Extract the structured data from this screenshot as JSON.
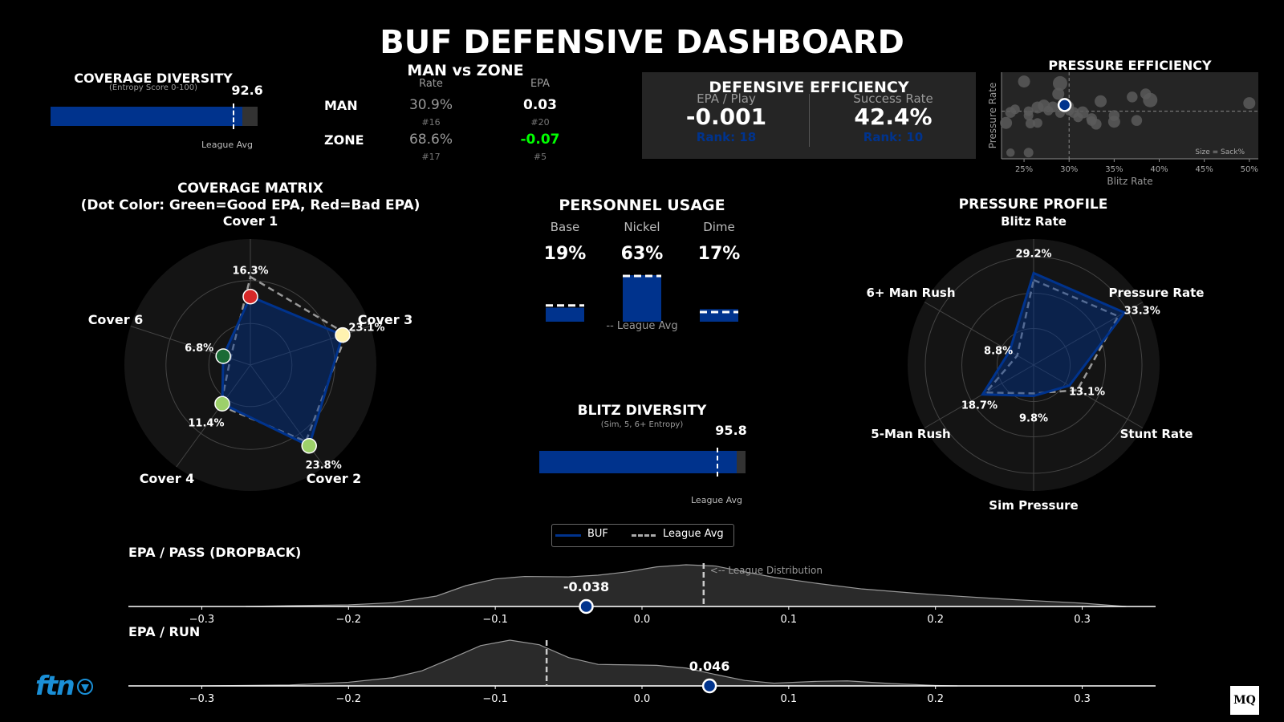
{
  "title": "BUF DEFENSIVE DASHBOARD",
  "coverage_diversity": {
    "title": "COVERAGE DIVERSITY",
    "subtitle": "(Entropy Score 0-100)",
    "value": 92.6,
    "value_label": "92.6",
    "league_avg": 88.5,
    "league_label": "League Avg",
    "max": 100,
    "bar_color": "#00338D"
  },
  "man_zone": {
    "title": "MAN vs ZONE",
    "col_rate": "Rate",
    "col_epa": "EPA",
    "rows": [
      {
        "label": "MAN",
        "rate": "30.9%",
        "rate_rank": "#16",
        "epa": "0.03",
        "epa_rank": "#20",
        "epa_color": "#ffffff"
      },
      {
        "label": "ZONE",
        "rate": "68.6%",
        "rate_rank": "#17",
        "epa": "-0.07",
        "epa_rank": "#5",
        "epa_color": "#00ff00"
      }
    ]
  },
  "def_eff": {
    "title": "DEFENSIVE EFFICIENCY",
    "epa_label": "EPA / Play",
    "epa_value": "-0.001",
    "epa_rank": "Rank: 18",
    "sr_label": "Success Rate",
    "sr_value": "42.4%",
    "sr_rank": "Rank: 10",
    "rank_color": "#00338D"
  },
  "pressure_eff": {
    "title": "PRESSURE EFFICIENCY",
    "xlabel": "Blitz Rate",
    "ylabel": "Pressure Rate",
    "note": "Size = Sack%",
    "xticks": [
      "25%",
      "30%",
      "35%",
      "40%",
      "45%",
      "50%"
    ]
  },
  "coverage_matrix": {
    "title": "COVERAGE MATRIX",
    "subtitle": "(Dot Color: Green=Good EPA, Red=Bad EPA)"
  },
  "personnel": {
    "title": "PERSONNEL USAGE",
    "league_label": "-- League Avg",
    "groups": [
      {
        "label": "Base",
        "value": "19%"
      },
      {
        "label": "Nickel",
        "value": "63%"
      },
      {
        "label": "Dime",
        "value": "17%"
      }
    ]
  },
  "blitz_diversity": {
    "title": "BLITZ DIVERSITY",
    "subtitle": "(Sim, 5, 6+ Entropy)",
    "value": 95.8,
    "value_label": "95.8",
    "league_avg": 86.5,
    "league_label": "League Avg",
    "max": 100
  },
  "pressure_profile": {
    "title": "PRESSURE PROFILE"
  },
  "legend": {
    "team": "BUF",
    "league": "League Avg"
  },
  "epa_pass": {
    "title": "EPA / PASS (DROPBACK)",
    "value_label": "-0.038",
    "annotation": "<-- League Distribution"
  },
  "epa_run": {
    "title": "EPA / RUN",
    "value_label": "0.046"
  },
  "logos": {
    "left": "ftn",
    "right": "MQ"
  },
  "colors": {
    "team": "#00338D",
    "league": "#aaaaaa",
    "good": "#00ff00"
  },
  "chart_data": [
    {
      "id": "pressure_eff",
      "type": "scatter",
      "title": "PRESSURE EFFICIENCY",
      "xlabel": "Blitz Rate",
      "ylabel": "Pressure Rate",
      "xlim": [
        0.225,
        0.51
      ],
      "ylim": [
        0.26,
        0.4
      ],
      "points": [
        [
          0.25,
          0.385
        ],
        [
          0.29,
          0.382
        ],
        [
          0.288,
          0.365
        ],
        [
          0.235,
          0.335
        ],
        [
          0.24,
          0.34
        ],
        [
          0.265,
          0.343
        ],
        [
          0.272,
          0.346
        ],
        [
          0.282,
          0.344
        ],
        [
          0.277,
          0.338
        ],
        [
          0.255,
          0.337
        ],
        [
          0.255,
          0.33
        ],
        [
          0.3,
          0.345
        ],
        [
          0.305,
          0.335
        ],
        [
          0.31,
          0.327
        ],
        [
          0.315,
          0.335
        ],
        [
          0.325,
          0.325
        ],
        [
          0.29,
          0.334
        ],
        [
          0.335,
          0.353
        ],
        [
          0.37,
          0.36
        ],
        [
          0.385,
          0.365
        ],
        [
          0.39,
          0.355
        ],
        [
          0.35,
          0.33
        ],
        [
          0.375,
          0.322
        ],
        [
          0.35,
          0.32
        ],
        [
          0.3,
          0.338
        ],
        [
          0.5,
          0.35
        ],
        [
          0.23,
          0.318
        ],
        [
          0.257,
          0.317
        ],
        [
          0.265,
          0.318
        ],
        [
          0.33,
          0.316
        ],
        [
          0.325,
          0.321
        ],
        [
          0.235,
          0.27
        ],
        [
          0.255,
          0.27
        ]
      ],
      "sizes": [
        1,
        1.2,
        1,
        0.9,
        0.8,
        1,
        1,
        0.9,
        0.8,
        0.8,
        0.8,
        0.8,
        0.9,
        0.8,
        1,
        0.9,
        0.8,
        1,
        0.9,
        0.9,
        1.2,
        0.9,
        0.9,
        1,
        0.8,
        1,
        1,
        0.8,
        0.8,
        0.9,
        0.8,
        0.7,
        0.8
      ],
      "highlight": {
        "label": "BUF",
        "x": 0.295,
        "y": 0.347
      },
      "league_avg": {
        "x": 0.3,
        "y": 0.337
      }
    },
    {
      "id": "coverage_matrix",
      "type": "radar",
      "axes": [
        "Cover 1",
        "Cover 3",
        "Cover 2",
        "Cover 4",
        "Cover 6"
      ],
      "team": [
        16.3,
        23.1,
        23.8,
        11.4,
        6.8
      ],
      "team_labels": [
        "16.3%",
        "23.1%",
        "23.8%",
        "11.4%",
        "6.8%"
      ],
      "league": [
        21.0,
        24.0,
        22.5,
        12.0,
        5.0
      ],
      "dot_colors": [
        "#d62828",
        "#fff2b0",
        "#9dd06a",
        "#9dd06a",
        "#1a6b35"
      ],
      "rmax": 30
    },
    {
      "id": "personnel",
      "type": "bar",
      "categories": [
        "Base",
        "Nickel",
        "Dime"
      ],
      "values": [
        19,
        63,
        17
      ],
      "league": [
        22,
        62,
        13
      ],
      "ylim": [
        0,
        75
      ]
    },
    {
      "id": "pressure_profile",
      "type": "radar",
      "axes": [
        "Blitz Rate",
        "Pressure Rate",
        "Stunt Rate",
        "Sim Pressure",
        "5-Man Rush",
        "6+ Man Rush"
      ],
      "team": [
        29.2,
        33.3,
        13.1,
        9.8,
        18.7,
        8.8
      ],
      "team_labels": [
        "29.2%",
        "33.3%",
        "13.1%",
        "9.8%",
        "18.7%",
        "8.8%"
      ],
      "league": [
        27.0,
        31.0,
        16.0,
        9.0,
        17.5,
        6.0
      ],
      "rmax": 40
    },
    {
      "id": "epa_pass",
      "type": "area",
      "title": "EPA / PASS (DROPBACK)",
      "xlim": [
        -0.35,
        0.35
      ],
      "xticks": [
        "-0.3",
        "-0.2",
        "-0.1",
        "0.0",
        "0.1",
        "0.2",
        "0.3"
      ],
      "x": [
        -0.27,
        -0.24,
        -0.2,
        -0.17,
        -0.14,
        -0.12,
        -0.1,
        -0.08,
        -0.05,
        -0.03,
        -0.01,
        0.01,
        0.03,
        0.05,
        0.07,
        0.09,
        0.12,
        0.15,
        0.2,
        0.25,
        0.3,
        0.33
      ],
      "y": [
        0.0,
        0.02,
        0.04,
        0.09,
        0.25,
        0.5,
        0.66,
        0.72,
        0.71,
        0.75,
        0.83,
        0.95,
        1.0,
        0.97,
        0.83,
        0.7,
        0.55,
        0.42,
        0.28,
        0.17,
        0.08,
        0.0
      ],
      "team_value": -0.038,
      "league_avg": 0.042
    },
    {
      "id": "epa_run",
      "type": "area",
      "title": "EPA / RUN",
      "xlim": [
        -0.35,
        0.35
      ],
      "xticks": [
        "-0.3",
        "-0.2",
        "-0.1",
        "0.0",
        "0.1",
        "0.2",
        "0.3"
      ],
      "x": [
        -0.3,
        -0.24,
        -0.2,
        -0.17,
        -0.15,
        -0.13,
        -0.11,
        -0.09,
        -0.07,
        -0.05,
        -0.03,
        -0.01,
        0.01,
        0.03,
        0.05,
        0.07,
        0.09,
        0.12,
        0.14,
        0.17,
        0.2,
        0.215
      ],
      "y": [
        0.0,
        0.02,
        0.08,
        0.18,
        0.33,
        0.6,
        0.88,
        1.0,
        0.9,
        0.62,
        0.47,
        0.46,
        0.45,
        0.39,
        0.25,
        0.12,
        0.06,
        0.1,
        0.11,
        0.05,
        0.01,
        0.0
      ],
      "team_value": 0.046,
      "league_avg": -0.065
    }
  ]
}
